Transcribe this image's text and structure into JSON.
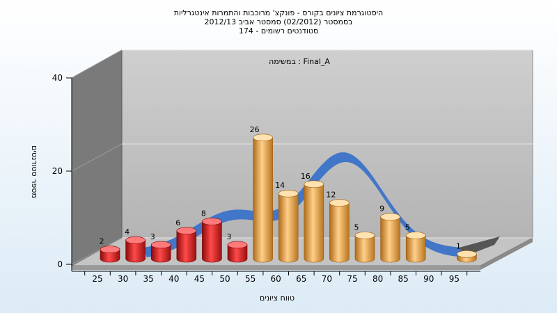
{
  "chart_data": {
    "type": "bar",
    "title_lines": [
      "היסטוגרמת ציונים בקורס - פונקצ' מרוכבות והתמרות אינטגרליות",
      "בסמסטר  (02/2012)  סמסטר אביב 2012/13",
      "סטודנטים רשומים - 174"
    ],
    "subtitle": "במשימה : Final_A",
    "xlabel": "טווח ציונים",
    "ylabel": "מספר סטודנטים",
    "ylim": [
      0,
      40
    ],
    "yticks": [
      0,
      20,
      40
    ],
    "categories": [
      "25",
      "30",
      "35",
      "40",
      "45",
      "50",
      "55",
      "60",
      "65",
      "70",
      "75",
      "80",
      "85",
      "90",
      "95"
    ],
    "values": [
      2,
      4,
      3,
      6,
      8,
      3,
      26,
      14,
      16,
      12,
      5,
      9,
      5,
      0,
      1
    ],
    "failing_color": "#e01818",
    "passing_color": "#e8a53c",
    "curve_color": "#3a72c8",
    "grid": true,
    "legend": "none"
  }
}
